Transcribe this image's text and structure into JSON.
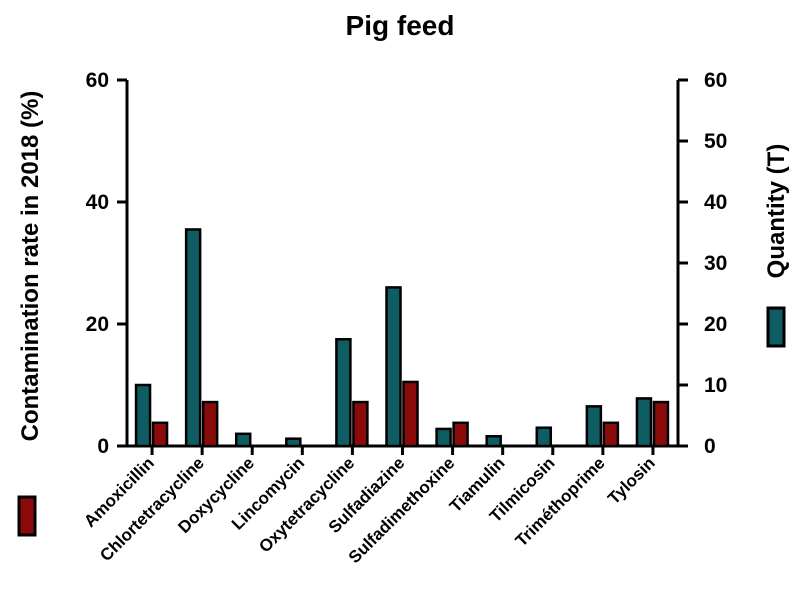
{
  "chart_data": {
    "type": "bar",
    "title": "Pig feed",
    "categories": [
      "Amoxicillin",
      "Chlortetracycline",
      "Doxycycline",
      "Lincomycin",
      "Oxytetracycline",
      "Sulfadiazine",
      "Sulfadimethoxine",
      "Tiamulin",
      "Tilmicosin",
      "Triméthoprime",
      "Tylosin"
    ],
    "ylabel_left": "Contamination rate in 2018 (%)",
    "ylabel_right": "Quantity (T)",
    "ylim_left": [
      0,
      60
    ],
    "ylim_right": [
      0,
      60
    ],
    "yticks_left": [
      "0",
      "20",
      "40",
      "60"
    ],
    "yticks_right": [
      "0",
      "10",
      "20",
      "30",
      "40",
      "50",
      "60"
    ],
    "grid": false,
    "legend": "along right axis labels",
    "series": [
      {
        "axis": "right",
        "values": [
          10,
          35.5,
          2,
          1.2,
          17.5,
          26,
          2.8,
          1.6,
          3,
          6.5,
          7.8
        ],
        "color": "#0d5d62"
      },
      {
        "axis": "left",
        "values": [
          3.8,
          7.2,
          0,
          0,
          7.2,
          10.5,
          3.8,
          0,
          0,
          3.8,
          7.2
        ],
        "color": "#8b0b0b"
      }
    ]
  }
}
